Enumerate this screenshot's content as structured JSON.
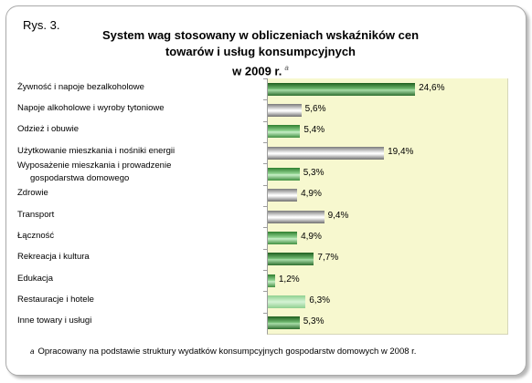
{
  "figure_label": "Rys. 3.",
  "title_lines": [
    "System wag stosowany w obliczeniach wskaźników cen",
    "towarów i usług konsumpcyjnych",
    "w 2009 r."
  ],
  "title_note_mark": "a",
  "footnote": {
    "mark": "a",
    "text": "Opracowany na podstawie struktury wydatków konsumpcyjnych gospodarstw domowych w 2008 r."
  },
  "chart_data": {
    "type": "bar",
    "orientation": "horizontal",
    "title": "System wag stosowany w obliczeniach wskaźników cen towarów i usług konsumpcyjnych w 2009 r.",
    "categories": [
      "Żywność i napoje bezalkoholowe",
      "Napoje alkoholowe i wyroby tytoniowe",
      "Odzież i obuwie",
      "Użytkowanie mieszkania i nośniki energii",
      "Wyposażenie mieszkania i prowadzenie gospodarstwa domowego",
      "Zdrowie",
      "Transport",
      "Łączność",
      "Rekreacja i kultura",
      "Edukacja",
      "Restauracje i hotele",
      "Inne towary i usługi"
    ],
    "category_lines": [
      [
        "Żywność i napoje bezalkoholowe"
      ],
      [
        "Napoje alkoholowe i wyroby tytoniowe"
      ],
      [
        "Odzież i obuwie"
      ],
      [
        "Użytkowanie mieszkania i nośniki energii"
      ],
      [
        "Wyposażenie mieszkania i prowadzenie",
        "gospodarstwa domowego"
      ],
      [
        "Zdrowie"
      ],
      [
        "Transport"
      ],
      [
        "Łączność"
      ],
      [
        "Rekreacja i kultura"
      ],
      [
        "Edukacja"
      ],
      [
        "Restauracje i hotele"
      ],
      [
        "Inne towary i usługi"
      ]
    ],
    "values": [
      24.6,
      5.6,
      5.4,
      19.4,
      5.3,
      4.9,
      9.4,
      4.9,
      7.7,
      1.2,
      6.3,
      5.3
    ],
    "value_labels": [
      "24,6%",
      "5,6%",
      "5,4%",
      "19,4%",
      "5,3%",
      "4,9%",
      "9,4%",
      "4,9%",
      "7,7%",
      "1,2%",
      "6,3%",
      "5,3%"
    ],
    "bar_styles": [
      "dark",
      "gray",
      "green",
      "gray",
      "green",
      "gray",
      "gray",
      "green",
      "dark",
      "green",
      "light",
      "dark"
    ],
    "unit": "%",
    "xlim": [
      0,
      40
    ],
    "grid": false,
    "legend": "none"
  }
}
